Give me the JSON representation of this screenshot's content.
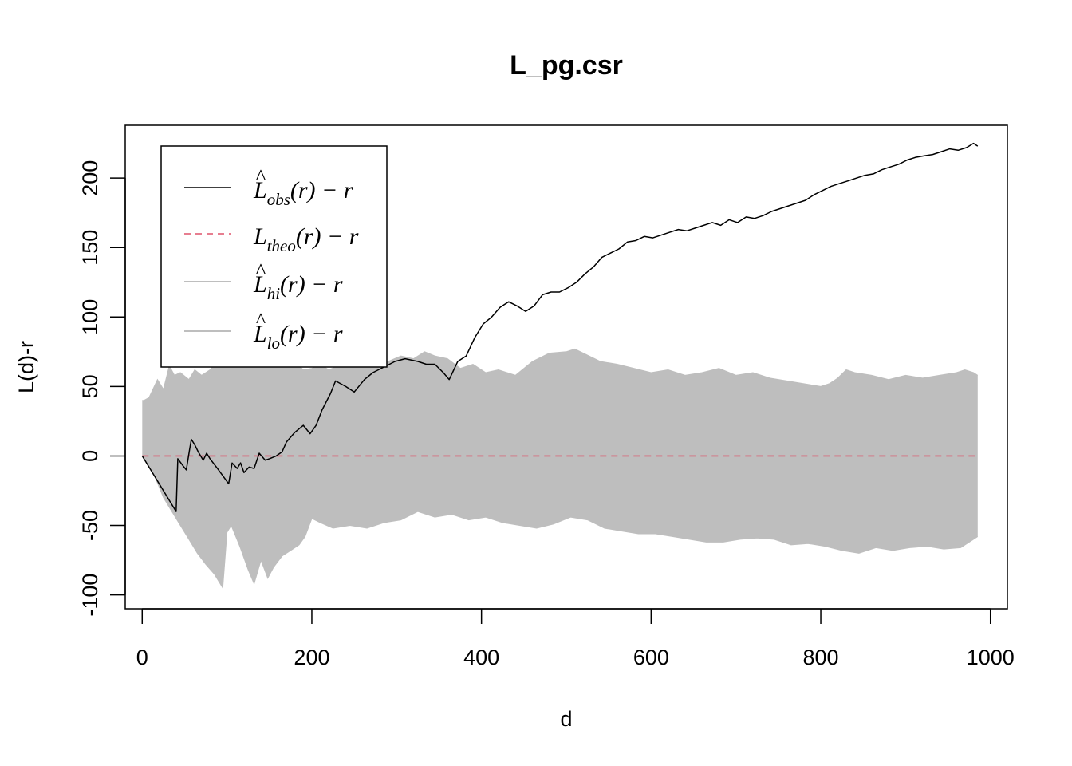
{
  "chart_data": {
    "type": "line",
    "title": "L_pg.csr",
    "xlabel": "d",
    "ylabel": "L(d)-r",
    "xlim": [
      -20,
      1020
    ],
    "ylim": [
      -110,
      238
    ],
    "xticks": [
      0,
      200,
      400,
      600,
      800,
      1000
    ],
    "yticks": [
      -100,
      -50,
      0,
      50,
      100,
      150,
      200
    ],
    "xtick_labels": [
      "0",
      "200",
      "400",
      "600",
      "800",
      "1000"
    ],
    "ytick_labels": [
      "-100",
      "-50",
      "0",
      "50",
      "100",
      "150",
      "200"
    ],
    "grid": false,
    "legend_position": "top-left",
    "legend": [
      {
        "hat": "^",
        "main": "L",
        "sub": "obs",
        "rest": "(r) − r",
        "style": "solid",
        "color": "#000000"
      },
      {
        "hat": "",
        "main": "L",
        "sub": "theo",
        "rest": "(r) − r",
        "style": "dashed",
        "color": "#DF536B"
      },
      {
        "hat": "^",
        "main": "L",
        "sub": "hi",
        "rest": "(r) − r",
        "style": "solid",
        "color": "#BEBEBE"
      },
      {
        "hat": "^",
        "main": "L",
        "sub": "lo",
        "rest": "(r) − r",
        "style": "solid",
        "color": "#BEBEBE"
      }
    ],
    "series": [
      {
        "role": "obs",
        "color": "#000000",
        "x": [
          0,
          40,
          42,
          48,
          52,
          56,
          58,
          62,
          66,
          72,
          76,
          80,
          90,
          102,
          106,
          112,
          116,
          120,
          126,
          132,
          138,
          145,
          150,
          158,
          165,
          170,
          180,
          190,
          198,
          205,
          212,
          222,
          228,
          240,
          250,
          262,
          272,
          285,
          298,
          310,
          325,
          335,
          345,
          355,
          362,
          372,
          382,
          392,
          402,
          412,
          422,
          432,
          442,
          452,
          462,
          472,
          482,
          492,
          502,
          512,
          522,
          532,
          542,
          552,
          562,
          572,
          582,
          592,
          602,
          612,
          622,
          632,
          642,
          652,
          662,
          672,
          682,
          692,
          702,
          712,
          722,
          732,
          742,
          752,
          762,
          772,
          782,
          792,
          802,
          812,
          822,
          832,
          842,
          852,
          862,
          872,
          882,
          892,
          902,
          912,
          922,
          932,
          942,
          952,
          962,
          972,
          980,
          985
        ],
        "y": [
          0,
          -40,
          -2,
          -7,
          -10,
          5,
          12,
          8,
          3,
          -3,
          2,
          -2,
          -10,
          -20,
          -5,
          -9,
          -5,
          -12,
          -8,
          -9,
          2,
          -3,
          -2,
          0,
          3,
          10,
          17,
          22,
          16,
          22,
          33,
          45,
          54,
          50,
          46,
          55,
          60,
          64,
          68,
          70,
          68,
          66,
          66,
          60,
          55,
          68,
          72,
          85,
          95,
          100,
          107,
          111,
          108,
          104,
          108,
          116,
          118,
          118,
          121,
          125,
          131,
          136,
          143,
          146,
          149,
          154,
          155,
          158,
          157,
          159,
          161,
          163,
          162,
          164,
          166,
          168,
          166,
          170,
          168,
          172,
          171,
          173,
          176,
          178,
          180,
          182,
          184,
          188,
          191,
          194,
          196,
          198,
          200,
          202,
          203,
          206,
          208,
          210,
          213,
          215,
          216,
          217,
          219,
          221,
          220,
          222,
          225,
          223
        ]
      },
      {
        "role": "theo",
        "color": "#DF536B",
        "x": [
          0,
          985
        ],
        "y": [
          0,
          0
        ]
      },
      {
        "role": "hi",
        "color": "#BEBEBE",
        "x": [
          0,
          2,
          8,
          18,
          25,
          32,
          38,
          45,
          55,
          62,
          70,
          80,
          90,
          98,
          105,
          115,
          122,
          130,
          140,
          150,
          160,
          170,
          180,
          190,
          200,
          210,
          220,
          232,
          245,
          260,
          275,
          290,
          305,
          320,
          333,
          345,
          360,
          375,
          390,
          405,
          420,
          440,
          460,
          480,
          500,
          510,
          520,
          540,
          560,
          580,
          600,
          620,
          640,
          660,
          680,
          700,
          720,
          740,
          760,
          780,
          800,
          810,
          820,
          830,
          840,
          860,
          880,
          900,
          920,
          940,
          960,
          970,
          980,
          985
        ],
        "y": [
          40,
          40,
          42,
          55,
          48,
          65,
          58,
          60,
          55,
          62,
          58,
          62,
          70,
          75,
          65,
          72,
          76,
          73,
          72,
          68,
          70,
          65,
          68,
          62,
          63,
          66,
          62,
          65,
          68,
          65,
          70,
          68,
          72,
          70,
          75,
          72,
          70,
          63,
          66,
          60,
          62,
          58,
          68,
          74,
          75,
          77,
          74,
          68,
          66,
          63,
          60,
          62,
          58,
          60,
          63,
          58,
          60,
          56,
          54,
          52,
          50,
          52,
          56,
          62,
          60,
          58,
          55,
          58,
          56,
          58,
          60,
          62,
          60,
          58
        ]
      },
      {
        "role": "lo",
        "color": "#BEBEBE",
        "x": [
          0,
          5,
          15,
          25,
          35,
          45,
          55,
          65,
          75,
          85,
          95,
          100,
          105,
          115,
          125,
          132,
          140,
          148,
          155,
          165,
          175,
          185,
          192,
          200,
          210,
          225,
          245,
          265,
          285,
          305,
          325,
          345,
          365,
          385,
          405,
          425,
          445,
          465,
          485,
          505,
          525,
          545,
          565,
          585,
          605,
          625,
          645,
          665,
          685,
          705,
          725,
          745,
          765,
          785,
          805,
          825,
          845,
          865,
          885,
          905,
          925,
          945,
          965,
          980,
          985
        ],
        "y": [
          0,
          -5,
          -15,
          -30,
          -40,
          -50,
          -60,
          -70,
          -78,
          -85,
          -95,
          -55,
          -50,
          -65,
          -82,
          -92,
          -75,
          -88,
          -80,
          -72,
          -68,
          -64,
          -58,
          -45,
          -48,
          -52,
          -50,
          -52,
          -48,
          -46,
          -40,
          -44,
          -42,
          -46,
          -44,
          -48,
          -50,
          -52,
          -49,
          -44,
          -46,
          -52,
          -54,
          -56,
          -56,
          -58,
          -60,
          -62,
          -62,
          -60,
          -59,
          -60,
          -64,
          -63,
          -65,
          -68,
          -70,
          -66,
          -68,
          -66,
          -65,
          -67,
          -66,
          -60,
          -58
        ]
      }
    ]
  }
}
